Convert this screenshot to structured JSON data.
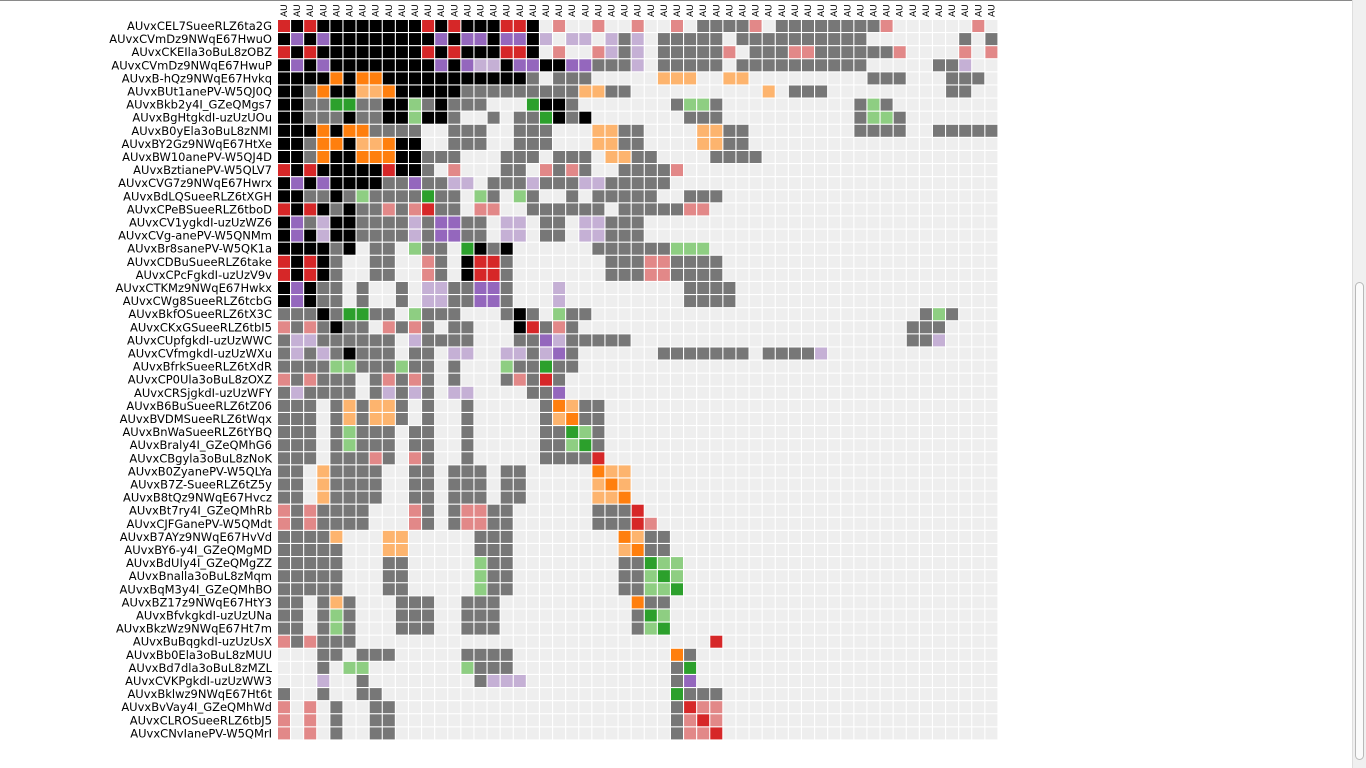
{
  "chart_data": {
    "type": "heatmap",
    "title": "",
    "xlabel": "",
    "ylabel": "",
    "nodes": [
      "AUvxCEL7SueeRLZ6ta2G",
      "AUvxCVmDz9NWqE67HwuO",
      "AUvxCKEIla3oBuL8zOBZ",
      "AUvxCVmDz9NWqE67HwuP",
      "AUvxB-hQz9NWqE67Hvkq",
      "AUvxBUt1anePV-W5QJ0Q",
      "AUvxBkb2y4I_GZeQMgs7",
      "AUvxBgHtgkdI-uzUzUOu",
      "AUvxB0yEla3oBuL8zNMI",
      "AUvxBY2Gz9NWqE67HtXe",
      "AUvxBW10anePV-W5QJ4D",
      "AUvxBztianePV-W5QLV7",
      "AUvxCVG7z9NWqE67Hwrx",
      "AUvxBdLQSueeRLZ6tXGH",
      "AUvxCPeBSueeRLZ6tboD",
      "AUvxCV1ygkdI-uzUzWZ6",
      "AUvxCVg-anePV-W5QNMm",
      "AUvxBr8sanePV-W5QK1a",
      "AUvxCDBuSueeRLZ6take",
      "AUvxCPcFgkdI-uzUzV9v",
      "AUvxCTKMz9NWqE67Hwkx",
      "AUvxCWg8SueeRLZ6tcbG",
      "AUvxBkfOSueeRLZ6tX3C",
      "AUvxCKxGSueeRLZ6tbI5",
      "AUvxCUpfgkdI-uzUzWWC",
      "AUvxCVfmgkdI-uzUzWXu",
      "AUvxBfrkSueeRLZ6tXdR",
      "AUvxCP0Ula3oBuL8zOXZ",
      "AUvxCRSjgkdI-uzUzWFY",
      "AUvxB6BuSueeRLZ6tZ06",
      "AUvxBVDMSueeRLZ6tWqx",
      "AUvxBnWaSueeRLZ6tYBQ",
      "AUvxBraly4I_GZeQMhG6",
      "AUvxCBgyla3oBuL8zNoK",
      "AUvxB0ZyanePV-W5QLYa",
      "AUvxB7Z-SueeRLZ6tZ5y",
      "AUvxB8tQz9NWqE67Hvcz",
      "AUvxBt7ry4I_GZeQMhRb",
      "AUvxCJFGanePV-W5QMdt",
      "AUvxB7AYz9NWqE67HvVd",
      "AUvxBY6-y4I_GZeQMgMD",
      "AUvxBdUIy4I_GZeQMgZZ",
      "AUvxBnalla3oBuL8zMqm",
      "AUvxBqM3y4I_GZeQMhBO",
      "AUvxBZ17z9NWqE67HtY3",
      "AUvxBfvkgkdI-uzUzUNa",
      "AUvxBkzWz9NWqE67Ht7m",
      "AUvxBuBqgkdI-uzUzUsX",
      "AUvxBb0Ela3oBuL8zMUU",
      "AUvxBd7dla3oBuL8zMZL",
      "AUvxCVKPgkdI-uzUzWW3",
      "AUvxBklwz9NWqE67Ht6t",
      "AUvxBvVay4I_GZeQMhWd",
      "AUvxCLROSueeRLZ6tbJ5",
      "AUvxCNvIanePV-W5QMrI"
    ],
    "column_label_fragment": "AU",
    "color_scheme": {
      "empty": "#eeeeee",
      "gray": "#777777",
      "black": "#000000",
      "red": "#d62728",
      "light_red": "#e28888",
      "orange": "#ff7f0e",
      "light_orange": "#fdb46e",
      "green": "#2ca02c",
      "light_green": "#8ece82",
      "purple": "#9467bd",
      "light_purple": "#c5b0d5"
    },
    "legend_codes": {
      ".": "empty",
      "g": "gray",
      "k": "black",
      "R": "red",
      "r": "light_red",
      "O": "orange",
      "o": "light_orange",
      "G": "green",
      "n": "light_green",
      "P": "purple",
      "p": "light_purple"
    },
    "rows": [
      "RkRkkkkkkkkRkRkkkRRk.r..r..r..r.ggggr.ggggggggr......r.rr",
      "kPkPkkkkkkkkPkPPkPPkp.pp.pgp.ggggg.gggggggggg.......g.ggg",
      "RkRkkkkkkkkRkRkkkRRk.r..rpgp.gggggr.gggrrggggggr....r.rr",
      "kPkPkkkkkkkkPkPppkPPkkPPgggp.ggggg.gggggggggg.....ggp....",
      "kkkkOkOOkkkkkkkkkkkg.ggg.....ooo..oo.........ggg...ggg",
      "kkgOkkooOkkkkkgggggggggoogg..........o.ggg.........gg",
      "kkggGGggkkngkggg...Gkkg.......gnng..........gng.......",
      "kkgggkggkknkkg..g.ggGkgk.......ggg..........gnng......",
      "kkkOkOOgggg..ggg..ggg...oogg....oogg........gggg..ggggg",
      "kkgOOkooOkk..ggg..ggg...oogg....oogg...................",
      "kkgOkkOOOkkggg...ggg.ggg.oogg....gggg...................",
      "RkRkkkkkRkkg.r...gg.rgrg..ggggr..........................",
      "kPkPkkkkggPggpp.gggpgggppggggg..........................",
      "kkggkgnggggGgg.ng.ng..g.ggggg..ggg.......................",
      "RkRkgkggrgrRgg.rr..gggggg.gggggrr........................",
      "kPgpkkggggpgPPgg.pp.gg.ppggg..........................",
      "kPkpkkggggpgPPgg.pp.gg.ppggg...........................",
      "kkkkgk.gg.ngg.Gkgk......ggggggnnn......................",
      "RkRkg..gg..rg.kRRg.......gggrrgggg.....................",
      "RkRkg..gg..rg.kRRg.......gggrrgggg.....................",
      "kPkgg.g..g.ppggPPg...p.........gggg....................",
      "kPkgg.g..g.ppggPPg...p.........gggg....................",
      "gggkgGGgg.nggg...gkg.ngg.........................gng...",
      "rgrgkgg.rgrg.gg...kRgrg.........................ggg....",
      "gppgggggg.pgggg...ggPpggggg.....................ggp....",
      "gpgpgkggg.gg.pp..ppgpPg......ggggggg.ggggp..............",
      "ggggnngggngg.g...nggGgg...................................",
      "rgrggg.grgrg.g...grgRg.....................................",
      "gpgggg.gpgpg.pp....ggP....................................",
      "ggg.gogoog.g..g.....gOogg..................................",
      "ggg.gogoog.g..g.....goOgg..................................",
      "ggg.gnggg.gg..g.....ggGng..................................",
      "ggg.gnggg.gg..g.....ggnGg..................................",
      "ggg.gggrg.rg..g.....ggggR..................................",
      "gg.ogggg..gg.ggg.gg.....Ooo................................",
      "gg.ogggg..gg.ggg.gg.....oOo................................",
      "gg.ogggg..gg.ggg.gg.....ooO................................",
      "rgrgggg...rg.grrgg......gggR...............................",
      "rgrgggg...rg.grrgg......gggRr..............................",
      "ggggo...oo.....ggg........Oogg.............................",
      "ggggg...oo.....ggg........oOgg.............................",
      "ggggg...gg.....ngg........ggGnn............................",
      "ggggg...gg.....ngg........ggnGn............................",
      "ggggg...gg.....ngg........ggnnG............................",
      "gg.gog...ggg..ggg..........Ogg.............................",
      "gg.gng...ggg..ggg..........gGn.............................",
      "gg.gng...ggg..ggg..........gnG.............................",
      "rgrggg...........................R.........................",
      "...gg.ggg.....gggg............Og...........................",
      "...g.nn.......nggg............gG...........................",
      "...p..g........gppp...........gP...........................",
      "g..g..gg......................Gggg.........................",
      "r.r.g..gg.....................gRrr.........................",
      "r.r.g..gg.....................grRr.........................",
      "r.r.g..gg.....................grrR........................."
    ]
  }
}
